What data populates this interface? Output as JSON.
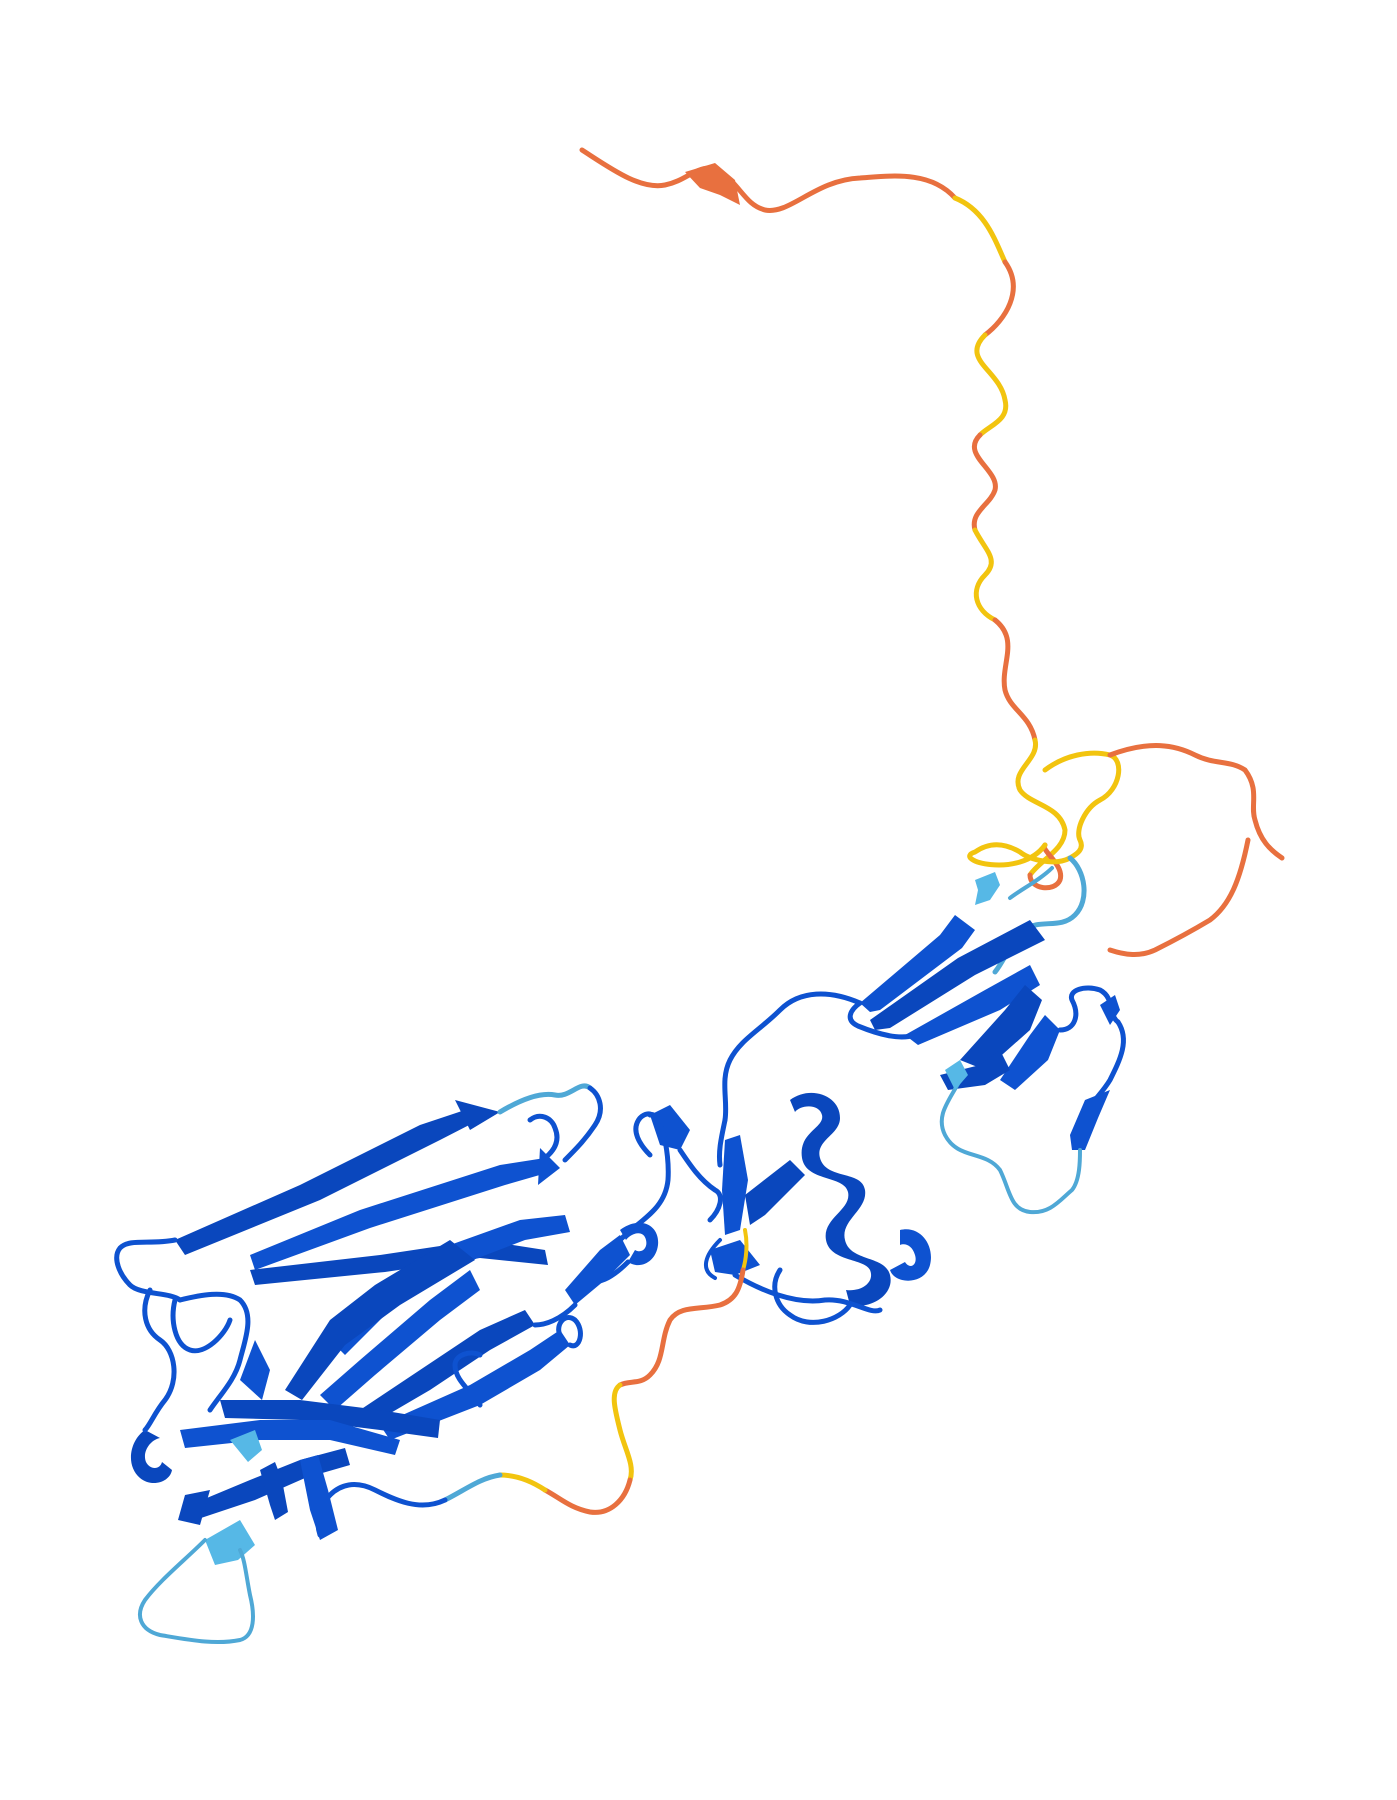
{
  "image": {
    "background": "#ffffff",
    "subject": "protein-structure-cartoon",
    "confidence_colors": {
      "very_high": "#0053d6",
      "high": "#65cbf3",
      "low": "#ffdb13",
      "very_low": "#ff7d45"
    },
    "regions": [
      {
        "name": "disordered-n-terminal-tail",
        "confidence": "very_low"
      },
      {
        "name": "disordered-linker",
        "confidence": "low"
      },
      {
        "name": "upper-beta-domain",
        "confidence": "very_high"
      },
      {
        "name": "central-helical-domain",
        "confidence": "very_high"
      },
      {
        "name": "lower-beta-sandwich-domain",
        "confidence": "very_high"
      }
    ]
  }
}
